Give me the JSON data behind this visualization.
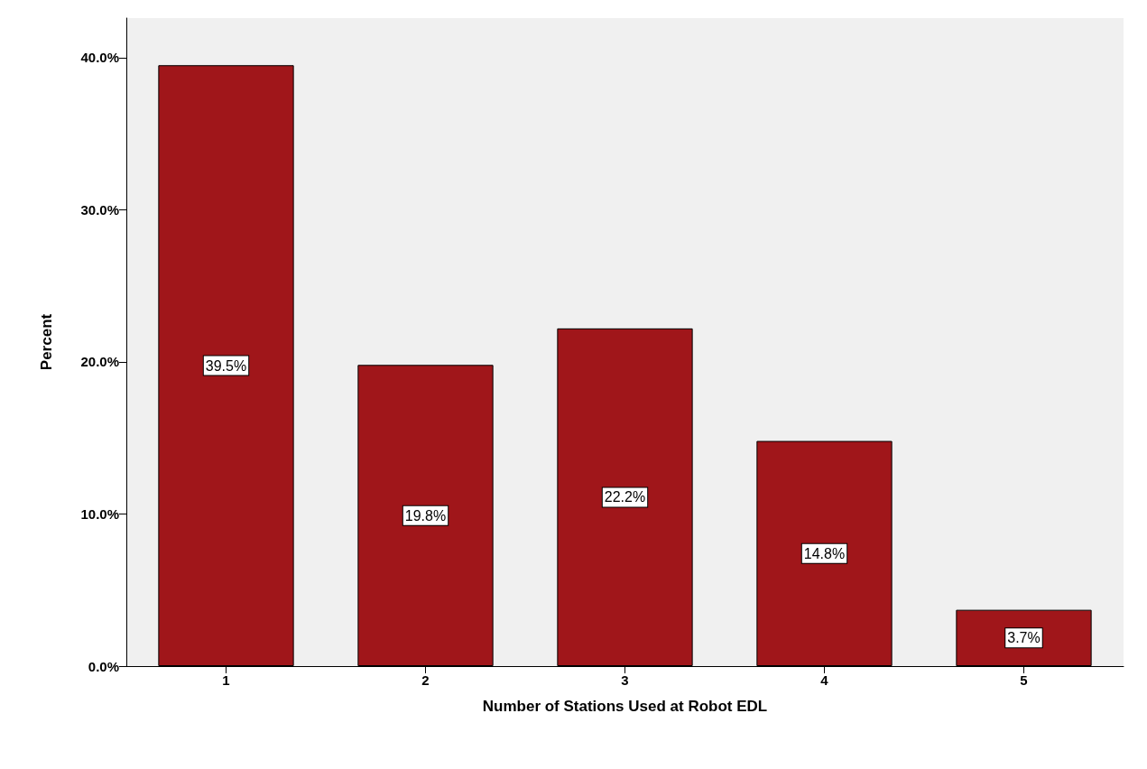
{
  "chart_data": {
    "type": "bar",
    "xlabel": "Number of Stations Used at Robot EDL",
    "ylabel": "Percent",
    "categories": [
      "1",
      "2",
      "3",
      "4",
      "5"
    ],
    "values": [
      39.5,
      19.8,
      22.2,
      14.8,
      3.7
    ],
    "value_labels": [
      "39.5%",
      "19.8%",
      "22.2%",
      "14.8%",
      "3.7%"
    ],
    "color": "#a0161a",
    "ylim": [
      0,
      42.6
    ],
    "yticks": [
      {
        "value": 0,
        "label": "0.0%"
      },
      {
        "value": 10,
        "label": "10.0%"
      },
      {
        "value": 20,
        "label": "20.0%"
      },
      {
        "value": 30,
        "label": "30.0%"
      },
      {
        "value": 40,
        "label": "40.0%"
      }
    ],
    "grid": false
  }
}
